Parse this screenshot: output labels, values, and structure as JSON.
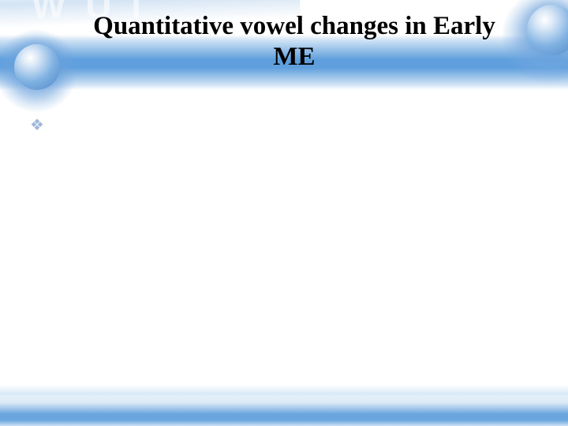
{
  "decor": {
    "ghost_text": "W U I"
  },
  "slide": {
    "title": "Quantitative vowel changes in Early ME"
  },
  "colors": {
    "band_primary": "#5f9fdd",
    "band_soft": "#9cc2e8",
    "bubble_highlight": "#ffffff",
    "bubble_mid": "#7fb1e2",
    "bubble_deep": "#4d86c6",
    "bullet": "#9fb8d9",
    "title_text": "#000000",
    "background": "#ffffff"
  },
  "typography": {
    "title_font": "Times New Roman",
    "title_size_pt": 25,
    "title_weight": "700"
  }
}
